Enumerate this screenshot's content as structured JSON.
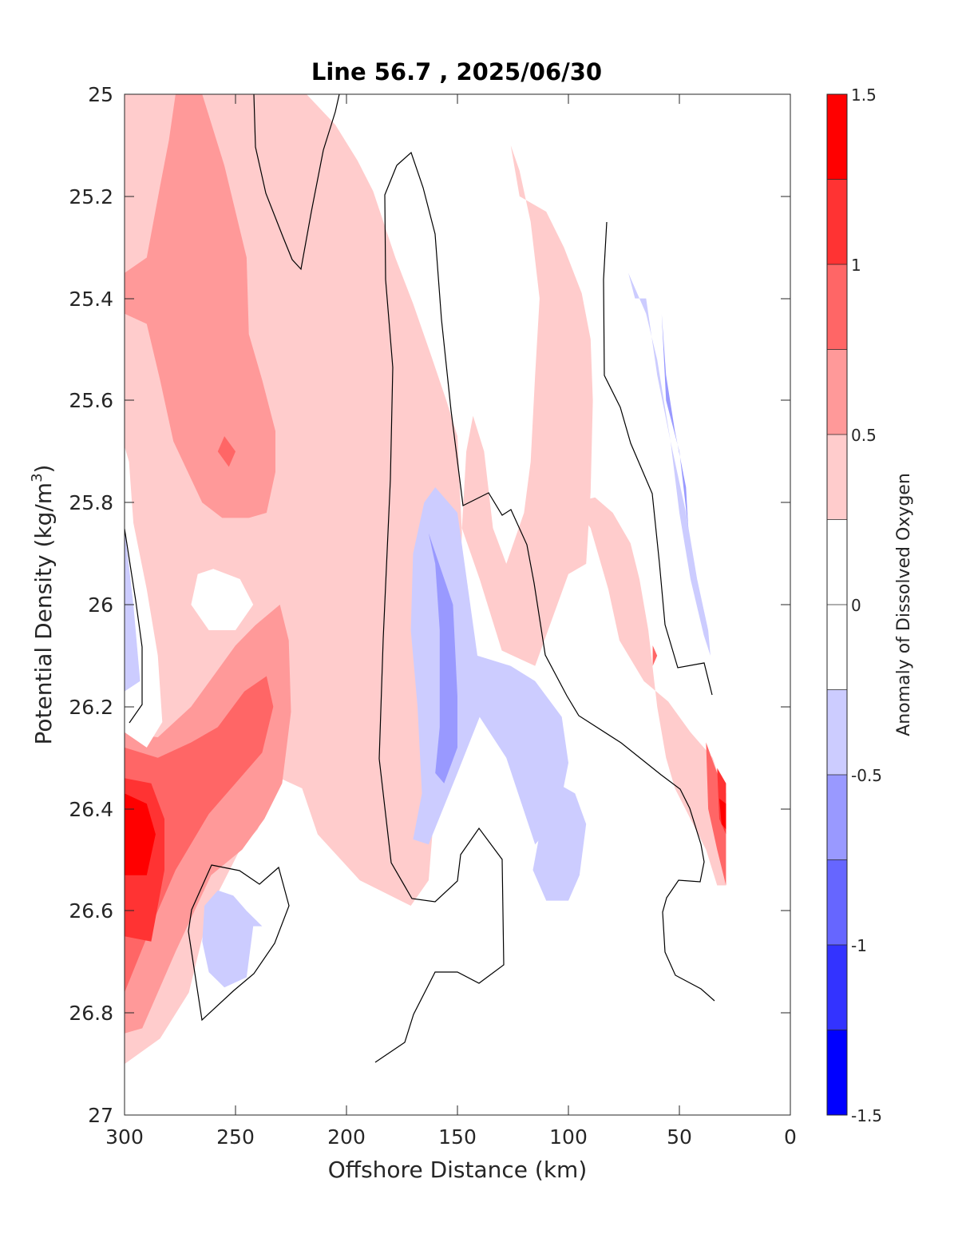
{
  "chart_data": {
    "type": "heatmap",
    "subtype": "filled-contour",
    "title": "Line 56.7 , 2025/06/30",
    "xlabel": "Offshore Distance (km)",
    "ylabel_main": "Potential Density (kg/m",
    "ylabel_sup": "3",
    "ylabel_close": ")",
    "xlim": [
      300,
      0
    ],
    "ylim": [
      25,
      27
    ],
    "x_reversed": true,
    "y_reversed": true,
    "x_ticks": [
      "300",
      "250",
      "200",
      "150",
      "100",
      "50",
      "0"
    ],
    "y_ticks": [
      "25",
      "25.2",
      "25.4",
      "25.6",
      "25.8",
      "26",
      "26.2",
      "26.4",
      "26.6",
      "26.8",
      "27"
    ],
    "colorbar": {
      "label": "Anomaly of Dissolved Oxygen",
      "range": [
        -1.5,
        1.5
      ],
      "tick_labels": [
        "1.5",
        "1",
        "0.5",
        "0",
        "-0.5",
        "-1",
        "-1.5"
      ],
      "level_colors_top_to_bottom": [
        "#ff0000",
        "#ff3333",
        "#ff6666",
        "#ff9999",
        "#ffcccc",
        "#ffffff",
        "#ffffff",
        "#ccccff",
        "#9999ff",
        "#6666ff",
        "#3333ff",
        "#0000ff"
      ]
    },
    "zero_contour": "black line",
    "regions": [
      {
        "level": 0.5,
        "color": "#ffcccc",
        "pts": [
          [
            300,
            25
          ],
          [
            218,
            25
          ],
          [
            205,
            25.06
          ],
          [
            195,
            25.13
          ],
          [
            188,
            25.19
          ],
          [
            178,
            25.32
          ],
          [
            170,
            25.41
          ],
          [
            162,
            25.51
          ],
          [
            155,
            25.6
          ],
          [
            150,
            25.67
          ],
          [
            148,
            25.86
          ],
          [
            150,
            26.05
          ],
          [
            155,
            26.22
          ],
          [
            160,
            26.38
          ],
          [
            163,
            26.54
          ],
          [
            171,
            26.59
          ],
          [
            194,
            26.54
          ],
          [
            213,
            26.45
          ],
          [
            220,
            26.36
          ],
          [
            230,
            26.34
          ],
          [
            240,
            26.44
          ],
          [
            248,
            26.48
          ],
          [
            262,
            26.6
          ],
          [
            271,
            26.76
          ],
          [
            284,
            26.85
          ],
          [
            300,
            26.9
          ]
        ]
      },
      {
        "level": 0.5,
        "color": "#ffcccc",
        "pts": [
          [
            126,
            25.1
          ],
          [
            122,
            25.2
          ],
          [
            110,
            25.23
          ],
          [
            102,
            25.3
          ],
          [
            94,
            25.39
          ],
          [
            90,
            25.48
          ],
          [
            89,
            25.6
          ],
          [
            90,
            25.78
          ],
          [
            92,
            25.92
          ],
          [
            100,
            25.94
          ],
          [
            105,
            26.0
          ],
          [
            115,
            26.12
          ],
          [
            130,
            26.09
          ],
          [
            140,
            25.95
          ],
          [
            148,
            25.85
          ],
          [
            146,
            25.7
          ],
          [
            143,
            25.63
          ],
          [
            138,
            25.7
          ],
          [
            134,
            25.85
          ],
          [
            128,
            25.92
          ],
          [
            120,
            25.82
          ],
          [
            117,
            25.72
          ],
          [
            115,
            25.55
          ],
          [
            113,
            25.4
          ],
          [
            117,
            25.25
          ],
          [
            122,
            25.15
          ]
        ]
      },
      {
        "level": 0.5,
        "color": "#ffcccc",
        "pts": [
          [
            98,
            25.8
          ],
          [
            90,
            25.85
          ],
          [
            82,
            25.97
          ],
          [
            77,
            26.07
          ],
          [
            66,
            26.15
          ],
          [
            55,
            26.19
          ],
          [
            45,
            26.25
          ],
          [
            35,
            26.3
          ],
          [
            29,
            26.38
          ],
          [
            29,
            26.55
          ],
          [
            33,
            26.55
          ],
          [
            38,
            26.48
          ],
          [
            45,
            26.42
          ],
          [
            52,
            26.36
          ],
          [
            56,
            26.3
          ],
          [
            60,
            26.2
          ],
          [
            64,
            26.05
          ],
          [
            68,
            25.95
          ],
          [
            72,
            25.88
          ],
          [
            80,
            25.82
          ],
          [
            88,
            25.79
          ]
        ]
      },
      {
        "level": 1.0,
        "color": "#ff9999",
        "pts": [
          [
            300,
            25.35
          ],
          [
            290,
            25.32
          ],
          [
            284,
            25.18
          ],
          [
            280,
            25.09
          ],
          [
            277,
            25.0
          ],
          [
            265,
            25.0
          ],
          [
            255,
            25.14
          ],
          [
            245,
            25.32
          ],
          [
            244,
            25.47
          ],
          [
            238,
            25.56
          ],
          [
            232,
            25.66
          ],
          [
            232,
            25.74
          ],
          [
            236,
            25.82
          ],
          [
            244,
            25.83
          ],
          [
            256,
            25.83
          ],
          [
            265,
            25.8
          ],
          [
            278,
            25.68
          ],
          [
            284,
            25.56
          ],
          [
            290,
            25.45
          ],
          [
            300,
            25.43
          ]
        ]
      },
      {
        "level": 1.0,
        "color": "#ff9999",
        "pts": [
          [
            300,
            26.25
          ],
          [
            285,
            26.26
          ],
          [
            270,
            26.2
          ],
          [
            260,
            26.14
          ],
          [
            250,
            26.08
          ],
          [
            241,
            26.04
          ],
          [
            230,
            26.0
          ],
          [
            226,
            26.07
          ],
          [
            225,
            26.21
          ],
          [
            229,
            26.35
          ],
          [
            237,
            26.42
          ],
          [
            247,
            26.48
          ],
          [
            261,
            26.53
          ],
          [
            277,
            26.68
          ],
          [
            292,
            26.83
          ],
          [
            300,
            26.84
          ]
        ]
      },
      {
        "level": 1.5,
        "color": "#ff6666",
        "pts": [
          [
            255,
            25.67
          ],
          [
            250,
            25.7
          ],
          [
            253,
            25.73
          ],
          [
            258,
            25.7
          ]
        ]
      },
      {
        "level": 1.5,
        "color": "#ff6666",
        "pts": [
          [
            300,
            26.28
          ],
          [
            285,
            26.3
          ],
          [
            270,
            26.27
          ],
          [
            258,
            26.24
          ],
          [
            246,
            26.17
          ],
          [
            236,
            26.14
          ],
          [
            233,
            26.2
          ],
          [
            238,
            26.29
          ],
          [
            248,
            26.34
          ],
          [
            262,
            26.41
          ],
          [
            277,
            26.52
          ],
          [
            287,
            26.62
          ],
          [
            300,
            26.76
          ]
        ]
      },
      {
        "level": 1.5,
        "color": "#ff6666",
        "pts": [
          [
            38,
            26.27
          ],
          [
            33,
            26.33
          ],
          [
            29,
            26.37
          ],
          [
            29,
            26.55
          ],
          [
            33,
            26.48
          ],
          [
            37,
            26.4
          ]
        ]
      },
      {
        "level": 1.5,
        "color": "#ff6666",
        "pts": [
          [
            62,
            26.08
          ],
          [
            60,
            26.1
          ],
          [
            62,
            26.12
          ]
        ]
      },
      {
        "level": 2.0,
        "color": "#ff3333",
        "pts": [
          [
            300,
            26.34
          ],
          [
            288,
            26.35
          ],
          [
            282,
            26.42
          ],
          [
            282,
            26.52
          ],
          [
            288,
            26.66
          ],
          [
            300,
            26.65
          ]
        ]
      },
      {
        "level": 2.0,
        "color": "#ff3333",
        "pts": [
          [
            33,
            26.32
          ],
          [
            29,
            26.35
          ],
          [
            29,
            26.45
          ],
          [
            32,
            26.42
          ]
        ]
      },
      {
        "level": 3.0,
        "color": "#ff0000",
        "pts": [
          [
            300,
            26.37
          ],
          [
            290,
            26.39
          ],
          [
            286,
            26.45
          ],
          [
            290,
            26.53
          ],
          [
            300,
            26.53
          ]
        ]
      },
      {
        "level": 3.0,
        "color": "#ff0000",
        "pts": [
          [
            32,
            26.38
          ],
          [
            29,
            26.39
          ],
          [
            29,
            26.44
          ],
          [
            31,
            26.43
          ]
        ]
      },
      {
        "level": -1,
        "color": "#ffffff",
        "pts": [
          [
            260,
            25.93
          ],
          [
            248,
            25.95
          ],
          [
            242,
            26.0
          ],
          [
            250,
            26.05
          ],
          [
            262,
            26.05
          ],
          [
            270,
            26.0
          ],
          [
            267,
            25.94
          ]
        ]
      },
      {
        "level": -1,
        "color": "#ffffff",
        "pts": [
          [
            300,
            25.69
          ],
          [
            300,
            26.25
          ],
          [
            290,
            26.28
          ],
          [
            283,
            26.23
          ],
          [
            285,
            26.1
          ],
          [
            290,
            25.97
          ],
          [
            296,
            25.84
          ],
          [
            298,
            25.72
          ]
        ]
      },
      {
        "level": -0.5,
        "color": "#ccccff",
        "pts": [
          [
            150,
            25.82
          ],
          [
            160,
            25.77
          ],
          [
            165,
            25.8
          ],
          [
            170,
            25.9
          ],
          [
            171,
            26.05
          ],
          [
            168,
            26.2
          ],
          [
            166,
            26.37
          ],
          [
            170,
            26.46
          ],
          [
            163,
            26.47
          ],
          [
            150,
            26.33
          ],
          [
            140,
            26.22
          ],
          [
            128,
            26.3
          ],
          [
            115,
            26.47
          ],
          [
            105,
            26.42
          ],
          [
            100,
            26.31
          ],
          [
            103,
            26.22
          ],
          [
            115,
            26.15
          ],
          [
            126,
            26.12
          ],
          [
            141,
            26.1
          ]
        ]
      },
      {
        "level": -0.5,
        "color": "#ccccff",
        "pts": [
          [
            97,
            26.37
          ],
          [
            92,
            26.43
          ],
          [
            95,
            26.53
          ],
          [
            100,
            26.58
          ],
          [
            110,
            26.58
          ],
          [
            116,
            26.52
          ],
          [
            113,
            26.45
          ],
          [
            110,
            26.37
          ],
          [
            105,
            26.35
          ]
        ]
      },
      {
        "level": -0.5,
        "color": "#ccccff",
        "pts": [
          [
            73,
            25.35
          ],
          [
            70,
            25.4
          ],
          [
            65,
            25.4
          ],
          [
            60,
            25.55
          ],
          [
            54,
            25.68
          ],
          [
            47,
            25.82
          ],
          [
            42,
            25.95
          ],
          [
            37,
            26.05
          ],
          [
            36,
            26.1
          ],
          [
            39,
            26.06
          ],
          [
            45,
            25.95
          ],
          [
            50,
            25.82
          ],
          [
            54,
            25.68
          ],
          [
            60,
            25.52
          ],
          [
            65,
            25.43
          ]
        ]
      },
      {
        "level": -0.5,
        "color": "#ccccff",
        "pts": [
          [
            242,
            26.63
          ],
          [
            238,
            26.63
          ],
          [
            245,
            26.6
          ],
          [
            251,
            26.57
          ],
          [
            258,
            26.56
          ],
          [
            264,
            26.59
          ],
          [
            265,
            26.66
          ],
          [
            262,
            26.72
          ],
          [
            255,
            26.75
          ],
          [
            245,
            26.73
          ]
        ]
      },
      {
        "level": -0.5,
        "color": "#ccccff",
        "pts": [
          [
            300,
            25.85
          ],
          [
            296,
            26.0
          ],
          [
            293,
            26.15
          ],
          [
            300,
            26.17
          ]
        ]
      },
      {
        "level": -1.0,
        "color": "#9999ff",
        "pts": [
          [
            163,
            25.86
          ],
          [
            160,
            25.92
          ],
          [
            158,
            26.05
          ],
          [
            158,
            26.24
          ],
          [
            160,
            26.33
          ],
          [
            156,
            26.35
          ],
          [
            150,
            26.28
          ],
          [
            150,
            26.18
          ],
          [
            152,
            26.0
          ]
        ]
      },
      {
        "level": -1.0,
        "color": "#9999ff",
        "pts": [
          [
            58,
            25.43
          ],
          [
            56,
            25.6
          ],
          [
            50,
            25.7
          ],
          [
            46,
            25.85
          ],
          [
            47,
            25.77
          ],
          [
            52,
            25.66
          ],
          [
            56,
            25.55
          ]
        ]
      }
    ]
  }
}
